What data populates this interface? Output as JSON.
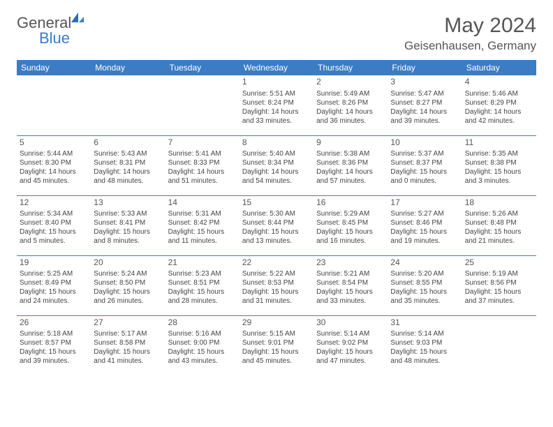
{
  "brand": {
    "part1": "General",
    "part2": "Blue"
  },
  "title": "May 2024",
  "location": "Geisenhausen, Germany",
  "colors": {
    "header_bg": "#3b7cc4",
    "header_fg": "#ffffff",
    "border": "#3b7cc4",
    "text": "#444444",
    "title": "#555555"
  },
  "fonts": {
    "title_size": 30,
    "location_size": 17,
    "th_size": 12,
    "daynum_size": 12,
    "cell_size": 10
  },
  "day_headers": [
    "Sunday",
    "Monday",
    "Tuesday",
    "Wednesday",
    "Thursday",
    "Friday",
    "Saturday"
  ],
  "weeks": [
    [
      null,
      null,
      null,
      {
        "n": "1",
        "sr": "5:51 AM",
        "ss": "8:24 PM",
        "dl1": "Daylight: 14 hours",
        "dl2": "and 33 minutes."
      },
      {
        "n": "2",
        "sr": "5:49 AM",
        "ss": "8:26 PM",
        "dl1": "Daylight: 14 hours",
        "dl2": "and 36 minutes."
      },
      {
        "n": "3",
        "sr": "5:47 AM",
        "ss": "8:27 PM",
        "dl1": "Daylight: 14 hours",
        "dl2": "and 39 minutes."
      },
      {
        "n": "4",
        "sr": "5:46 AM",
        "ss": "8:29 PM",
        "dl1": "Daylight: 14 hours",
        "dl2": "and 42 minutes."
      }
    ],
    [
      {
        "n": "5",
        "sr": "5:44 AM",
        "ss": "8:30 PM",
        "dl1": "Daylight: 14 hours",
        "dl2": "and 45 minutes."
      },
      {
        "n": "6",
        "sr": "5:43 AM",
        "ss": "8:31 PM",
        "dl1": "Daylight: 14 hours",
        "dl2": "and 48 minutes."
      },
      {
        "n": "7",
        "sr": "5:41 AM",
        "ss": "8:33 PM",
        "dl1": "Daylight: 14 hours",
        "dl2": "and 51 minutes."
      },
      {
        "n": "8",
        "sr": "5:40 AM",
        "ss": "8:34 PM",
        "dl1": "Daylight: 14 hours",
        "dl2": "and 54 minutes."
      },
      {
        "n": "9",
        "sr": "5:38 AM",
        "ss": "8:36 PM",
        "dl1": "Daylight: 14 hours",
        "dl2": "and 57 minutes."
      },
      {
        "n": "10",
        "sr": "5:37 AM",
        "ss": "8:37 PM",
        "dl1": "Daylight: 15 hours",
        "dl2": "and 0 minutes."
      },
      {
        "n": "11",
        "sr": "5:35 AM",
        "ss": "8:38 PM",
        "dl1": "Daylight: 15 hours",
        "dl2": "and 3 minutes."
      }
    ],
    [
      {
        "n": "12",
        "sr": "5:34 AM",
        "ss": "8:40 PM",
        "dl1": "Daylight: 15 hours",
        "dl2": "and 5 minutes."
      },
      {
        "n": "13",
        "sr": "5:33 AM",
        "ss": "8:41 PM",
        "dl1": "Daylight: 15 hours",
        "dl2": "and 8 minutes."
      },
      {
        "n": "14",
        "sr": "5:31 AM",
        "ss": "8:42 PM",
        "dl1": "Daylight: 15 hours",
        "dl2": "and 11 minutes."
      },
      {
        "n": "15",
        "sr": "5:30 AM",
        "ss": "8:44 PM",
        "dl1": "Daylight: 15 hours",
        "dl2": "and 13 minutes."
      },
      {
        "n": "16",
        "sr": "5:29 AM",
        "ss": "8:45 PM",
        "dl1": "Daylight: 15 hours",
        "dl2": "and 16 minutes."
      },
      {
        "n": "17",
        "sr": "5:27 AM",
        "ss": "8:46 PM",
        "dl1": "Daylight: 15 hours",
        "dl2": "and 19 minutes."
      },
      {
        "n": "18",
        "sr": "5:26 AM",
        "ss": "8:48 PM",
        "dl1": "Daylight: 15 hours",
        "dl2": "and 21 minutes."
      }
    ],
    [
      {
        "n": "19",
        "sr": "5:25 AM",
        "ss": "8:49 PM",
        "dl1": "Daylight: 15 hours",
        "dl2": "and 24 minutes."
      },
      {
        "n": "20",
        "sr": "5:24 AM",
        "ss": "8:50 PM",
        "dl1": "Daylight: 15 hours",
        "dl2": "and 26 minutes."
      },
      {
        "n": "21",
        "sr": "5:23 AM",
        "ss": "8:51 PM",
        "dl1": "Daylight: 15 hours",
        "dl2": "and 28 minutes."
      },
      {
        "n": "22",
        "sr": "5:22 AM",
        "ss": "8:53 PM",
        "dl1": "Daylight: 15 hours",
        "dl2": "and 31 minutes."
      },
      {
        "n": "23",
        "sr": "5:21 AM",
        "ss": "8:54 PM",
        "dl1": "Daylight: 15 hours",
        "dl2": "and 33 minutes."
      },
      {
        "n": "24",
        "sr": "5:20 AM",
        "ss": "8:55 PM",
        "dl1": "Daylight: 15 hours",
        "dl2": "and 35 minutes."
      },
      {
        "n": "25",
        "sr": "5:19 AM",
        "ss": "8:56 PM",
        "dl1": "Daylight: 15 hours",
        "dl2": "and 37 minutes."
      }
    ],
    [
      {
        "n": "26",
        "sr": "5:18 AM",
        "ss": "8:57 PM",
        "dl1": "Daylight: 15 hours",
        "dl2": "and 39 minutes."
      },
      {
        "n": "27",
        "sr": "5:17 AM",
        "ss": "8:58 PM",
        "dl1": "Daylight: 15 hours",
        "dl2": "and 41 minutes."
      },
      {
        "n": "28",
        "sr": "5:16 AM",
        "ss": "9:00 PM",
        "dl1": "Daylight: 15 hours",
        "dl2": "and 43 minutes."
      },
      {
        "n": "29",
        "sr": "5:15 AM",
        "ss": "9:01 PM",
        "dl1": "Daylight: 15 hours",
        "dl2": "and 45 minutes."
      },
      {
        "n": "30",
        "sr": "5:14 AM",
        "ss": "9:02 PM",
        "dl1": "Daylight: 15 hours",
        "dl2": "and 47 minutes."
      },
      {
        "n": "31",
        "sr": "5:14 AM",
        "ss": "9:03 PM",
        "dl1": "Daylight: 15 hours",
        "dl2": "and 48 minutes."
      },
      null
    ]
  ],
  "labels": {
    "sunrise_prefix": "Sunrise: ",
    "sunset_prefix": "Sunset: "
  }
}
